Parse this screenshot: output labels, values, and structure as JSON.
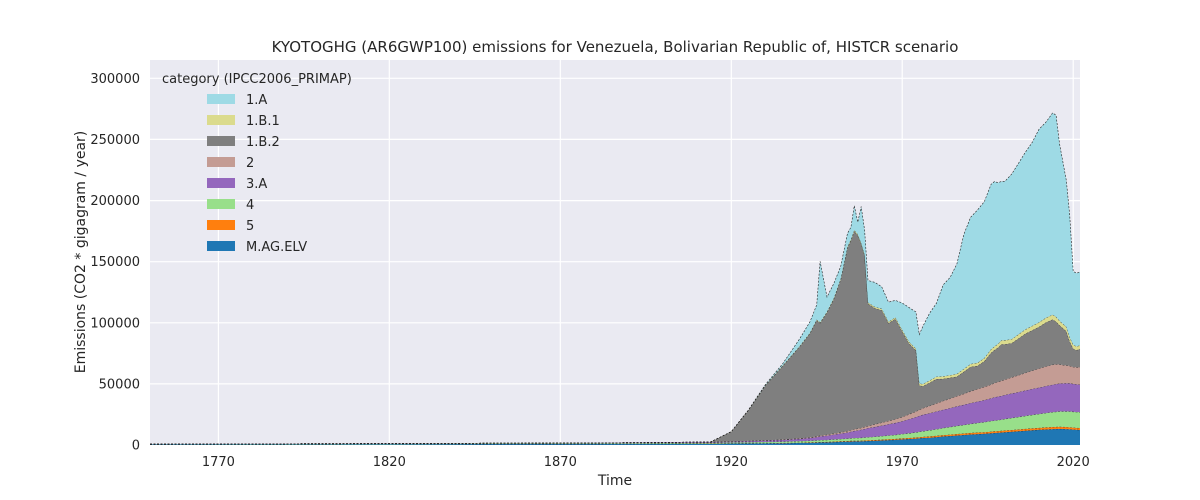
{
  "chart_data": {
    "type": "area",
    "title": "KYOTOGHG (AR6GWP100) emissions for Venezuela, Bolivarian Republic of, HISTCR scenario",
    "xlabel": "Time",
    "ylabel": "Emissions (CO2 * gigagram / year)",
    "xlim": [
      1750,
      2022
    ],
    "ylim": [
      0,
      315000
    ],
    "xticks": [
      1770,
      1820,
      1870,
      1920,
      1970,
      2020
    ],
    "yticks": [
      0,
      50000,
      100000,
      150000,
      200000,
      250000,
      300000
    ],
    "ytick_labels": [
      "0",
      "50000",
      "100000",
      "150000",
      "200000",
      "250000",
      "300000"
    ],
    "grid": true,
    "legend": {
      "title": "category (IPCC2006_PRIMAP)",
      "placement": "top-left"
    },
    "x": [
      1750,
      1800,
      1850,
      1880,
      1900,
      1914,
      1920,
      1925,
      1930,
      1935,
      1940,
      1943,
      1945,
      1946,
      1948,
      1950,
      1952,
      1954,
      1955,
      1956,
      1957,
      1958,
      1959,
      1960,
      1962,
      1964,
      1966,
      1968,
      1970,
      1972,
      1974,
      1975,
      1976,
      1978,
      1980,
      1982,
      1984,
      1986,
      1988,
      1990,
      1992,
      1994,
      1996,
      1997,
      1998,
      1999,
      2000,
      2002,
      2004,
      2006,
      2008,
      2010,
      2012,
      2014,
      2015,
      2016,
      2018,
      2019,
      2020,
      2021,
      2022
    ],
    "series": [
      {
        "name": "M.AG.ELV",
        "color": "#1f77b4",
        "values": [
          500,
          600,
          800,
          900,
          1000,
          1100,
          1200,
          1300,
          1400,
          1500,
          1700,
          1800,
          2000,
          2100,
          2200,
          2400,
          2600,
          2800,
          2900,
          3000,
          3000,
          3100,
          3200,
          3300,
          3500,
          3800,
          4000,
          4300,
          4600,
          4900,
          5200,
          5500,
          5700,
          6000,
          6500,
          7000,
          7400,
          7800,
          8200,
          8600,
          8900,
          9200,
          9600,
          9800,
          10000,
          10200,
          10400,
          10800,
          11200,
          11600,
          12000,
          12400,
          12700,
          13000,
          13100,
          13200,
          13000,
          12900,
          12600,
          12400,
          12300
        ]
      },
      {
        "name": "5",
        "color": "#ff7f0e",
        "values": [
          0,
          0,
          0,
          0,
          0,
          100,
          100,
          100,
          100,
          200,
          200,
          300,
          300,
          300,
          300,
          400,
          400,
          400,
          500,
          500,
          500,
          500,
          500,
          600,
          600,
          600,
          700,
          700,
          800,
          800,
          900,
          900,
          900,
          1000,
          1000,
          1100,
          1100,
          1200,
          1200,
          1300,
          1300,
          1300,
          1400,
          1400,
          1400,
          1400,
          1500,
          1500,
          1500,
          1600,
          1600,
          1600,
          1700,
          1700,
          1700,
          1700,
          1700,
          1700,
          1600,
          1600,
          1600
        ]
      },
      {
        "name": "4",
        "color": "#98df8a",
        "values": [
          200,
          300,
          400,
          500,
          600,
          700,
          800,
          900,
          1000,
          1100,
          1300,
          1400,
          1500,
          1600,
          1700,
          1800,
          1900,
          2000,
          2100,
          2200,
          2200,
          2300,
          2400,
          2500,
          2700,
          2900,
          3100,
          3300,
          3600,
          3900,
          4200,
          4400,
          4600,
          5000,
          5400,
          5800,
          6200,
          6600,
          7000,
          7400,
          7800,
          8200,
          8600,
          8800,
          9000,
          9200,
          9400,
          9800,
          10200,
          10600,
          11000,
          11400,
          11800,
          12200,
          12400,
          12600,
          12800,
          12900,
          13000,
          13000,
          13000
        ]
      },
      {
        "name": "3.A",
        "color": "#9467bd",
        "values": [
          100,
          150,
          250,
          350,
          450,
          550,
          700,
          900,
          1100,
          1400,
          1800,
          2200,
          2600,
          3000,
          3400,
          3900,
          4400,
          5000,
          5400,
          5800,
          6200,
          6600,
          7000,
          7400,
          8000,
          8600,
          9200,
          9800,
          10500,
          11500,
          12500,
          13000,
          13500,
          14000,
          14500,
          15000,
          15500,
          16000,
          16500,
          17000,
          17500,
          18000,
          18500,
          19000,
          19200,
          19400,
          19600,
          20000,
          20400,
          20800,
          21200,
          21600,
          22000,
          22400,
          22600,
          22800,
          23000,
          23000,
          22800,
          22600,
          22500
        ]
      },
      {
        "name": "2",
        "color": "#c49c94",
        "values": [
          0,
          0,
          0,
          0,
          0,
          50,
          100,
          150,
          200,
          300,
          400,
          500,
          600,
          700,
          800,
          900,
          1000,
          1200,
          1300,
          1400,
          1500,
          1600,
          1700,
          1800,
          2100,
          2400,
          2700,
          3000,
          3400,
          4000,
          4600,
          5000,
          5400,
          6000,
          6600,
          7200,
          7800,
          8400,
          9000,
          9600,
          10200,
          10800,
          11400,
          11700,
          12000,
          12300,
          12600,
          13200,
          13800,
          14400,
          15000,
          15600,
          16000,
          16400,
          16200,
          15600,
          14600,
          14200,
          13800,
          14000,
          14200
        ]
      },
      {
        "name": "1.B.2",
        "color": "#7f7f7f",
        "values": [
          0,
          0,
          0,
          0,
          0,
          0,
          8000,
          25000,
          45000,
          60000,
          75000,
          85000,
          95000,
          92000,
          100000,
          110000,
          125000,
          150000,
          155000,
          162000,
          158000,
          150000,
          140000,
          100000,
          95000,
          92000,
          80000,
          82000,
          70000,
          58000,
          50000,
          20000,
          18000,
          19000,
          20000,
          18000,
          17000,
          16000,
          18000,
          20000,
          19000,
          21000,
          26000,
          27000,
          28000,
          30000,
          29000,
          28000,
          30000,
          32000,
          33000,
          34000,
          36000,
          37000,
          35000,
          32000,
          28000,
          20000,
          15000,
          14000,
          15000
        ]
      },
      {
        "name": "1.B.1",
        "color": "#dbdb8d",
        "values": [
          0,
          0,
          0,
          0,
          0,
          0,
          50,
          100,
          200,
          300,
          400,
          500,
          600,
          600,
          700,
          700,
          800,
          800,
          900,
          900,
          900,
          1000,
          1000,
          1000,
          1100,
          1100,
          1200,
          1200,
          1300,
          1400,
          1500,
          1600,
          1700,
          1800,
          1900,
          2000,
          2100,
          2200,
          2300,
          2400,
          2500,
          2600,
          2800,
          2900,
          3000,
          3100,
          3200,
          3300,
          3400,
          3500,
          3600,
          3700,
          3800,
          3900,
          3800,
          3700,
          3500,
          3400,
          3200,
          3000,
          3000
        ]
      },
      {
        "name": "1.A",
        "color": "#9edae5",
        "values": [
          0,
          0,
          0,
          0,
          0,
          0,
          0,
          0,
          500,
          1500,
          6000,
          9000,
          12000,
          50000,
          12000,
          12000,
          10000,
          11000,
          10000,
          20000,
          10000,
          30000,
          20000,
          18000,
          20000,
          18000,
          16000,
          14000,
          22000,
          28000,
          30000,
          40000,
          47000,
          55000,
          60000,
          75000,
          80000,
          90000,
          110000,
          120000,
          125000,
          128000,
          135000,
          135000,
          132000,
          130000,
          130000,
          135000,
          140000,
          145000,
          150000,
          158000,
          160000,
          165000,
          165000,
          145000,
          120000,
          100000,
          60000,
          60000,
          60000
        ]
      }
    ]
  }
}
